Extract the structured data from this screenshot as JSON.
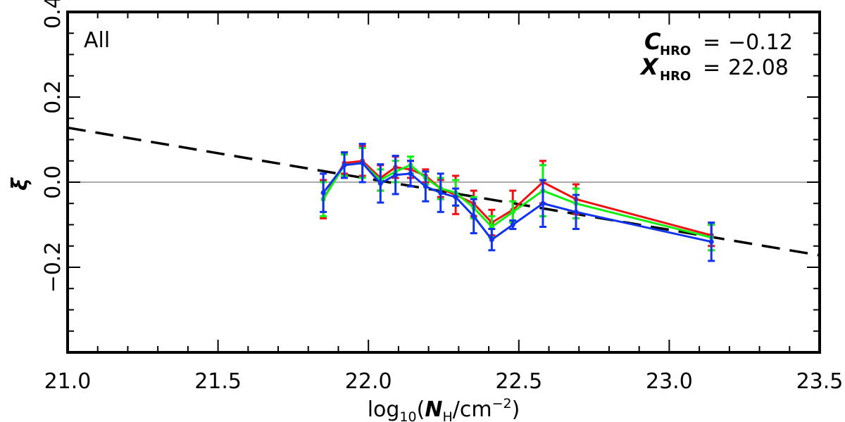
{
  "chart_data": {
    "type": "line",
    "title": "",
    "xlabel": {
      "prefix": "log",
      "sub": "10",
      "open": "(",
      "var": "N",
      "var_sub": "H",
      "unit": "/cm",
      "exp": "−2",
      "close": ")"
    },
    "ylabel": "ξ",
    "xlim": [
      21.0,
      23.5
    ],
    "ylim": [
      -0.4,
      0.4
    ],
    "xticks": [
      21.0,
      21.5,
      22.0,
      22.5,
      23.0,
      23.5
    ],
    "xtick_labels": [
      "21.0",
      "21.5",
      "22.0",
      "22.5",
      "23.0",
      "23.5"
    ],
    "yticks": [
      -0.2,
      0.0,
      0.2,
      0.4
    ],
    "ytick_labels": [
      "−0.2",
      "0.0",
      "0.2",
      "0.4"
    ],
    "grid": false,
    "panel_label": "All",
    "reference_line": {
      "y": 0.0,
      "color": "#aaaaaa"
    },
    "fit_line": {
      "color": "#000000",
      "style": "dashed",
      "points": [
        [
          21.0,
          0.128
        ],
        [
          23.5,
          -0.172
        ]
      ]
    },
    "annotations": {
      "c_sym": "C",
      "c_sub": "HRO",
      "c_eq": "=",
      "c_val": "−0.12",
      "x_sym": "X",
      "x_sub": "HRO",
      "x_eq": "=",
      "x_val": "22.08"
    },
    "x": [
      21.85,
      21.92,
      21.98,
      22.04,
      22.09,
      22.14,
      22.19,
      22.24,
      22.29,
      22.35,
      22.41,
      22.48,
      22.58,
      22.69,
      23.14
    ],
    "series": [
      {
        "name": "red",
        "color": "#ee1111",
        "values": [
          -0.04,
          0.045,
          0.05,
          0.01,
          0.035,
          0.03,
          0.015,
          -0.015,
          -0.03,
          -0.05,
          -0.095,
          -0.065,
          0.0,
          -0.04,
          -0.125
        ],
        "err": [
          0.045,
          0.025,
          0.035,
          0.03,
          0.025,
          0.02,
          0.015,
          0.02,
          0.045,
          0.03,
          0.03,
          0.045,
          0.05,
          0.035,
          0.025
        ]
      },
      {
        "name": "green",
        "color": "#11ee11",
        "values": [
          -0.04,
          0.04,
          0.045,
          0.005,
          0.025,
          0.04,
          0.01,
          -0.015,
          -0.025,
          -0.06,
          -0.105,
          -0.07,
          -0.02,
          -0.05,
          -0.13
        ],
        "err": [
          0.04,
          0.025,
          0.035,
          0.025,
          0.025,
          0.02,
          0.015,
          0.025,
          0.03,
          0.025,
          0.025,
          0.025,
          0.06,
          0.035,
          0.03
        ]
      },
      {
        "name": "blue",
        "color": "#1133ee",
        "values": [
          -0.025,
          0.04,
          0.045,
          -0.003,
          0.017,
          0.02,
          -0.01,
          -0.025,
          -0.035,
          -0.08,
          -0.135,
          -0.1,
          -0.05,
          -0.07,
          -0.14
        ],
        "err": [
          0.045,
          0.03,
          0.045,
          0.045,
          0.045,
          0.03,
          0.035,
          0.045,
          0.02,
          0.04,
          0.025,
          0.01,
          0.055,
          0.04,
          0.045
        ]
      }
    ]
  }
}
